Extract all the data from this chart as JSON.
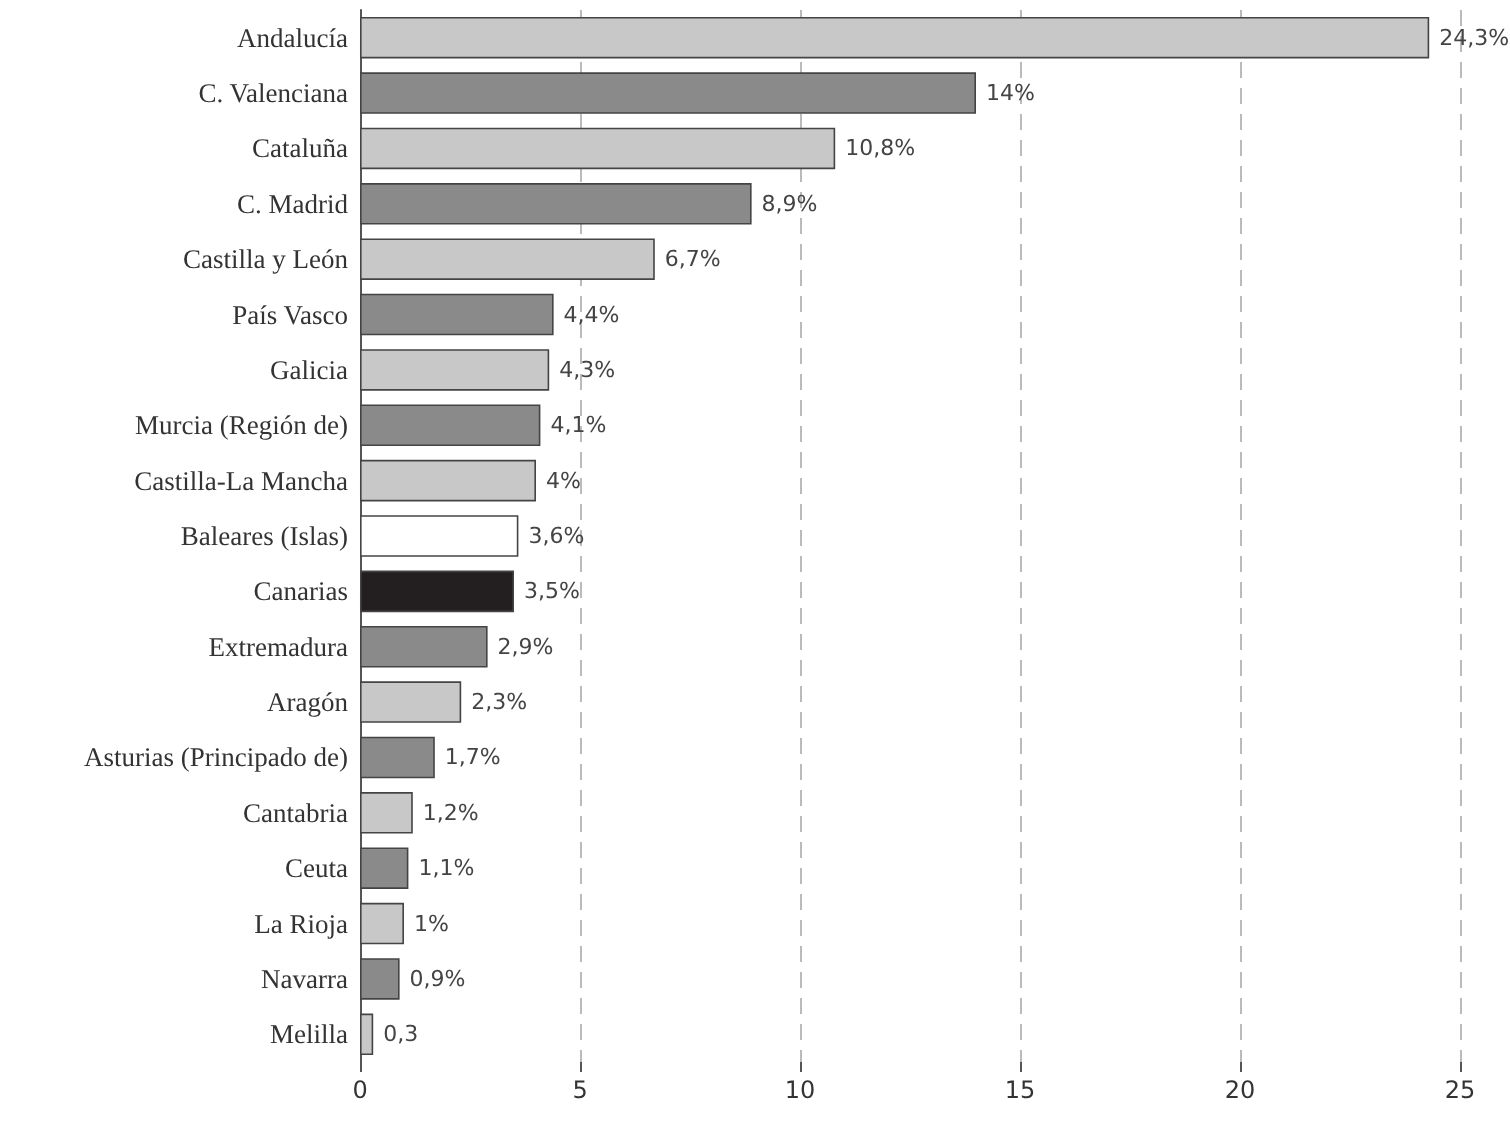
{
  "chart_data": {
    "type": "bar",
    "orientation": "horizontal",
    "categories": [
      "Andalucía",
      "C. Valenciana",
      "Cataluña",
      "C. Madrid",
      "Castilla y León",
      "País Vasco",
      "Galicia",
      "Murcia (Región de)",
      "Castilla-La Mancha",
      "Baleares (Islas)",
      "Canarias",
      "Extremadura",
      "Aragón",
      "Asturias (Principado de)",
      "Cantabria",
      "Ceuta",
      "La Rioja",
      "Navarra",
      "Melilla"
    ],
    "values": [
      24.3,
      14,
      10.8,
      8.9,
      6.7,
      4.4,
      4.3,
      4.1,
      4,
      3.6,
      3.5,
      2.9,
      2.3,
      1.7,
      1.2,
      1.1,
      1,
      0.9,
      0.3
    ],
    "colors": [
      "#c8c8c8",
      "#8a8a8a",
      "#c8c8c8",
      "#8a8a8a",
      "#c8c8c8",
      "#8a8a8a",
      "#c8c8c8",
      "#8a8a8a",
      "#c8c8c8",
      "#ffffff",
      "#231f20",
      "#8a8a8a",
      "#c8c8c8",
      "#8a8a8a",
      "#c8c8c8",
      "#8a8a8a",
      "#c8c8c8",
      "#8a8a8a",
      "#c8c8c8"
    ],
    "value_labels": [
      "24,3%",
      "14%",
      "10,8%",
      "8,9%",
      "6,7%",
      "4,4%",
      "4,3%",
      "4,1%",
      "4%",
      "3,6%",
      "3,5%",
      "2,9%",
      "2,3%",
      "1,7%",
      "1,2%",
      "1,1%",
      "1%",
      "0,9%",
      "0,3"
    ],
    "xlim": [
      0,
      25
    ],
    "xticks": [
      0,
      5,
      10,
      15,
      20,
      25
    ],
    "grid": "x"
  }
}
